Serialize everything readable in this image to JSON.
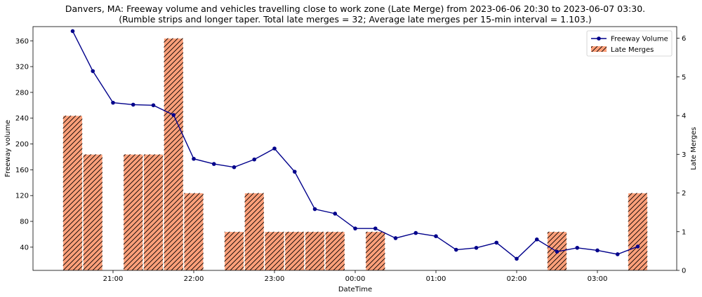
{
  "chart_data": {
    "type": "bar+line",
    "title": "Danvers, MA: Freeway volume and vehicles travelling close to work zone (Late Merge) from 2023-06-06 20:30 to 2023-06-07 03:30.",
    "subtitle": "(Rumble strips and longer taper. Total late merges = 32; Average late merges per 15-min interval = 1.103.)",
    "xlabel": "DateTime",
    "ylabel_left": "Freeway volume",
    "ylabel_right": "Late Merges",
    "x_ticks": [
      "21:00",
      "22:00",
      "23:00",
      "00:00",
      "01:00",
      "02:00",
      "03:00"
    ],
    "y_left_ticks": [
      40,
      80,
      120,
      160,
      200,
      240,
      280,
      320,
      360
    ],
    "y_right_ticks": [
      0,
      1,
      2,
      3,
      4,
      5,
      6
    ],
    "ylim_left": [
      4,
      382
    ],
    "ylim_right": [
      0,
      6.3
    ],
    "legend_position": "top-right",
    "x": [
      "20:30",
      "20:45",
      "21:00",
      "21:15",
      "21:30",
      "21:45",
      "22:00",
      "22:15",
      "22:30",
      "22:45",
      "23:00",
      "23:15",
      "23:30",
      "23:45",
      "00:00",
      "00:15",
      "00:30",
      "00:45",
      "01:00",
      "01:15",
      "01:30",
      "01:45",
      "02:00",
      "02:15",
      "02:30",
      "02:45",
      "03:00",
      "03:15",
      "03:30"
    ],
    "series": [
      {
        "name": "Freeway Volume",
        "kind": "line",
        "axis": "left",
        "color": "#00008b",
        "values": [
          375,
          313,
          264,
          261,
          260,
          245,
          177,
          169,
          164,
          176,
          193,
          157,
          99,
          92,
          69,
          69,
          54,
          62,
          57,
          36,
          39,
          47,
          22,
          52,
          33,
          39,
          35,
          29,
          41
        ]
      },
      {
        "name": "Late Merges",
        "kind": "bar",
        "axis": "right",
        "color": "#ffa07a",
        "values": [
          4,
          3,
          0,
          3,
          3,
          6,
          2,
          0,
          1,
          2,
          1,
          1,
          1,
          1,
          0,
          1,
          0,
          0,
          0,
          0,
          0,
          0,
          0,
          0,
          1,
          0,
          0,
          0,
          2
        ]
      }
    ]
  }
}
